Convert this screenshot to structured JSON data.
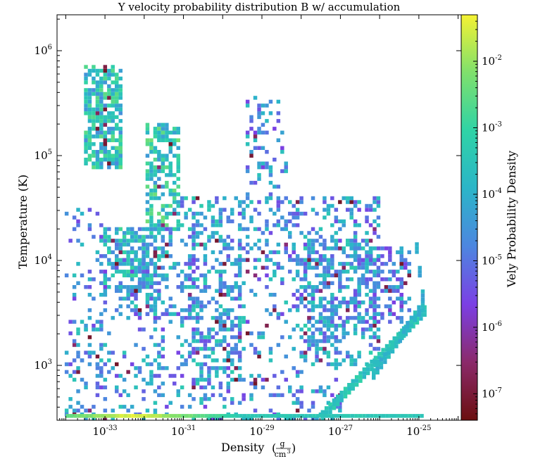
{
  "chart_data": {
    "type": "heatmap",
    "title": "Y velocity probability distribution B w/ accumulation",
    "xlabel": "Density",
    "xlabel_unit_num": "g",
    "xlabel_unit_den": "cm",
    "xlabel_unit_den_exp": "3",
    "ylabel": "Temperature  (K)",
    "colorbar_label": "Vely Probability Density",
    "x_scale": "log",
    "y_scale": "log",
    "color_scale": "log",
    "xlim": [
      6e-35,
      1.2e-24
    ],
    "ylim": [
      300,
      2200000.0
    ],
    "clim": [
      4e-08,
      0.05
    ],
    "colormap": [
      "#6b0f0f",
      "#8b2a6a",
      "#7b3fe4",
      "#4d86e0",
      "#2bb5c8",
      "#2fd3a6",
      "#7fe06c",
      "#f5f233"
    ],
    "x_ticks": [
      {
        "base": "10",
        "exp": "-33",
        "value": 1e-33
      },
      {
        "base": "10",
        "exp": "-31",
        "value": 1e-31
      },
      {
        "base": "10",
        "exp": "-29",
        "value": 1e-29
      },
      {
        "base": "10",
        "exp": "-27",
        "value": 1e-27
      },
      {
        "base": "10",
        "exp": "-25",
        "value": 1e-25
      }
    ],
    "y_ticks": [
      {
        "base": "10",
        "exp": "3",
        "value": 1000
      },
      {
        "base": "10",
        "exp": "4",
        "value": 10000
      },
      {
        "base": "10",
        "exp": "5",
        "value": 100000
      },
      {
        "base": "10",
        "exp": "6",
        "value": 1000000
      }
    ],
    "colorbar_ticks": [
      {
        "base": "10",
        "exp": "-7",
        "value": 1e-07
      },
      {
        "base": "10",
        "exp": "-6",
        "value": 1e-06
      },
      {
        "base": "10",
        "exp": "-5",
        "value": 1e-05
      },
      {
        "base": "10",
        "exp": "-4",
        "value": 0.0001
      },
      {
        "base": "10",
        "exp": "-3",
        "value": 0.001
      },
      {
        "base": "10",
        "exp": "-2",
        "value": 0.01
      }
    ],
    "regions": [
      {
        "log_x": [
          -33.5,
          -32.6
        ],
        "log_y": [
          4.9,
          5.85
        ],
        "level": -3.6,
        "density": 0.75
      },
      {
        "log_x": [
          -31.9,
          -31.1
        ],
        "log_y": [
          4.3,
          5.3
        ],
        "level": -3.4,
        "density": 0.6
      },
      {
        "log_x": [
          -32.3,
          -31.3
        ],
        "log_y": [
          3.5,
          4.3
        ],
        "level": -4.3,
        "density": 0.35
      },
      {
        "log_x": [
          -33.0,
          -31.7
        ],
        "log_y": [
          3.7,
          4.3
        ],
        "level": -3.9,
        "density": 0.5
      },
      {
        "log_x": [
          -31.0,
          -29.6
        ],
        "log_y": [
          2.8,
          4.6
        ],
        "level": -4.3,
        "density": 0.3
      },
      {
        "log_x": [
          -29.4,
          -28.4
        ],
        "log_y": [
          4.6,
          5.55
        ],
        "level": -4.6,
        "density": 0.28
      },
      {
        "log_x": [
          -29.6,
          -26.0
        ],
        "log_y": [
          4.0,
          4.6
        ],
        "level": -4.5,
        "density": 0.32
      },
      {
        "log_x": [
          -27.9,
          -26.0
        ],
        "log_y": [
          3.0,
          4.2
        ],
        "level": -4.3,
        "density": 0.4
      },
      {
        "log_x": [
          -26.6,
          -25.2
        ],
        "log_y": [
          3.4,
          4.1
        ],
        "level": -4.7,
        "density": 0.4
      },
      {
        "log_x": [
          -33.9,
          -27.0
        ],
        "log_y": [
          2.5,
          4.0
        ],
        "level": -4.5,
        "density": 0.18
      },
      {
        "log_x": [
          -34.0,
          -33.0
        ],
        "log_y": [
          2.5,
          4.5
        ],
        "level": -4.6,
        "density": 0.12
      }
    ],
    "bands": [
      {
        "log_x": [
          -27.5,
          -24.9
        ],
        "log_y": [
          2.5,
          3.5
        ],
        "level": -3.5
      },
      {
        "log_x": [
          -26.2,
          -24.95
        ],
        "log_y": [
          2.9,
          3.55
        ],
        "level": -3.8
      },
      {
        "log_x": [
          -25.1,
          -24.95
        ],
        "log_y": [
          4.1,
          3.65
        ],
        "level": -4.1
      }
    ],
    "floor_row": {
      "log_x": [
        -34.0,
        -24.95
      ],
      "log_y": 2.5,
      "peak_log_x": -32.3,
      "peak_level": -1.4,
      "base_level": -3.4
    }
  }
}
